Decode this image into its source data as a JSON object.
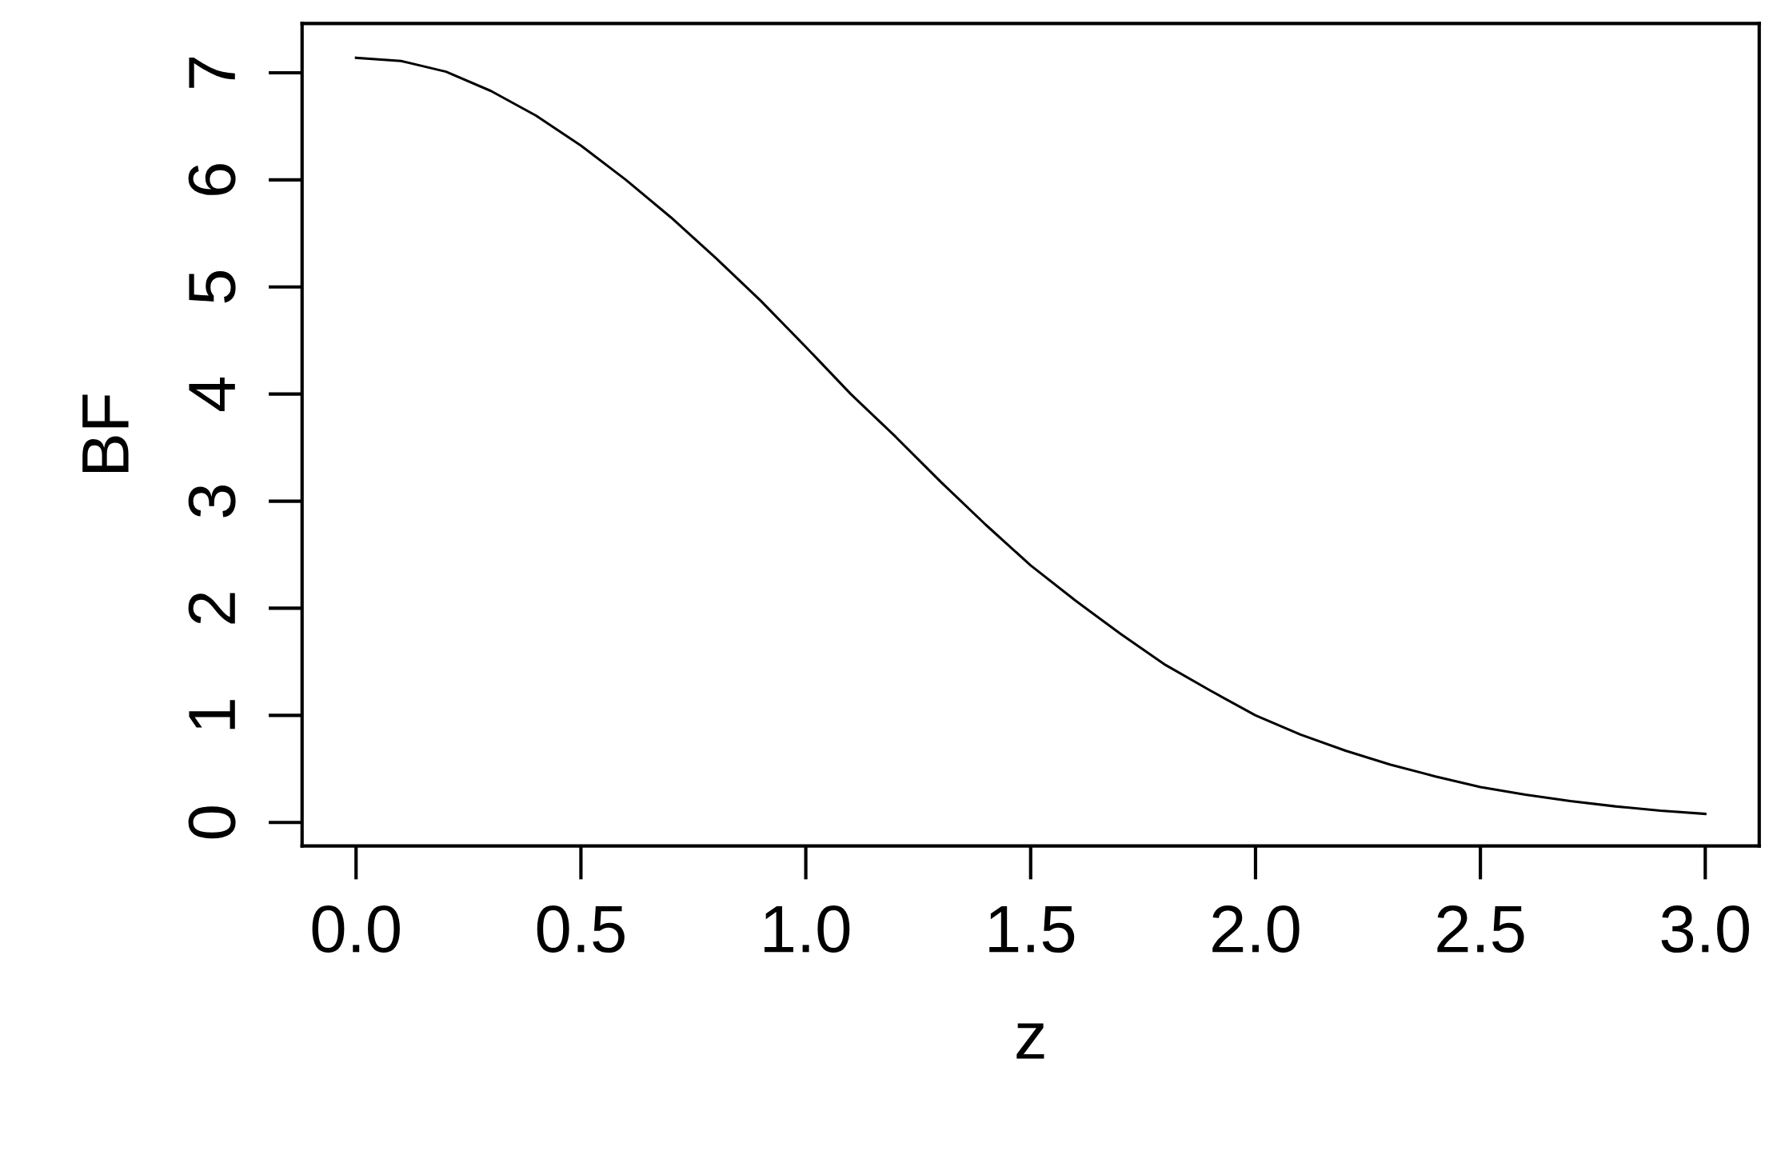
{
  "chart_data": {
    "type": "line",
    "xlabel": "z",
    "ylabel": "BF",
    "x": [
      0,
      0.1,
      0.2,
      0.3,
      0.4,
      0.5,
      0.6,
      0.7,
      0.8,
      0.9,
      1.0,
      1.1,
      1.2,
      1.3,
      1.4,
      1.5,
      1.6,
      1.7,
      1.8,
      1.9,
      2.0,
      2.1,
      2.2,
      2.3,
      2.4,
      2.5,
      2.6,
      2.7,
      2.8,
      2.9,
      3.0
    ],
    "series": [
      {
        "color": "#000000",
        "values": [
          7.14,
          7.11,
          7.01,
          6.83,
          6.6,
          6.32,
          6.0,
          5.65,
          5.27,
          4.87,
          4.44,
          4.0,
          3.6,
          3.18,
          2.78,
          2.4,
          2.07,
          1.76,
          1.47,
          1.23,
          1.0,
          0.82,
          0.67,
          0.54,
          0.43,
          0.33,
          0.26,
          0.2,
          0.15,
          0.11,
          0.08
        ]
      }
    ],
    "xlim": [
      -0.12,
      3.12
    ],
    "ylim": [
      -0.22,
      7.46
    ],
    "xticks": [
      {
        "value": 0,
        "label": "0.0"
      },
      0.5,
      {
        "value": 1,
        "label": "1.0"
      },
      1.5,
      {
        "value": 2,
        "label": "2.0"
      },
      2.5,
      {
        "value": 3,
        "label": "3.0"
      }
    ],
    "yticks": [
      0,
      1,
      2,
      3,
      4,
      5,
      6,
      7
    ],
    "grid": false,
    "legend": false,
    "marker": "none",
    "line_style": "solid"
  }
}
